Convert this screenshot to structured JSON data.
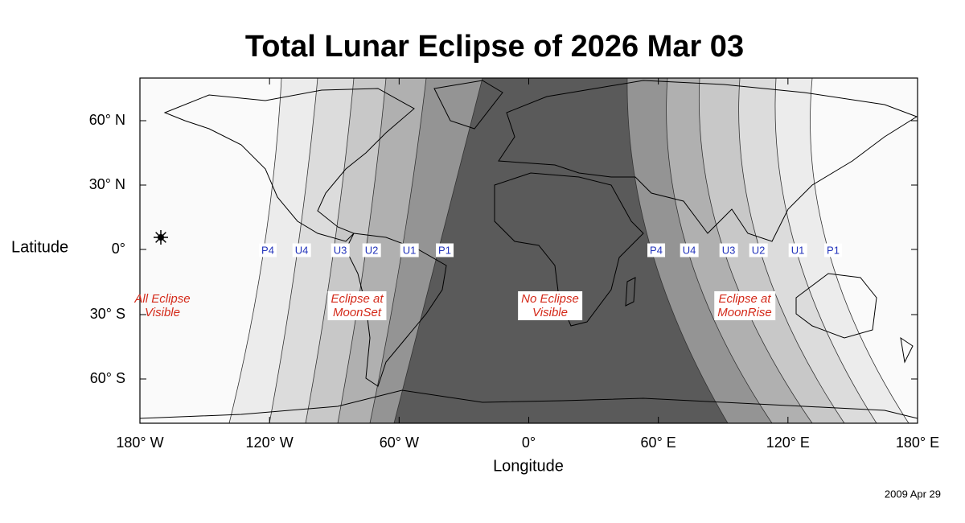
{
  "title": "Total Lunar Eclipse of  2026 Mar 03",
  "y_axis": {
    "label": "Latitude",
    "ticks": [
      "60° N",
      "30° N",
      "0°",
      "30° S",
      "60° S"
    ]
  },
  "x_axis": {
    "label": "Longitude",
    "ticks": [
      "180° W",
      "120° W",
      "60° W",
      "0°",
      "60° E",
      "120° E",
      "180° E"
    ]
  },
  "contacts_west": [
    "P4",
    "U4",
    "U3",
    "U2",
    "U1",
    "P1"
  ],
  "contacts_east": [
    "P4",
    "U4",
    "U3",
    "U2",
    "U1",
    "P1"
  ],
  "regions": [
    {
      "lines": [
        "All Eclipse",
        "Visible"
      ]
    },
    {
      "lines": [
        "Eclipse at",
        "MoonSet"
      ]
    },
    {
      "lines": [
        "No Eclipse",
        "Visible"
      ]
    },
    {
      "lines": [
        "Eclipse at",
        "MoonRise"
      ]
    }
  ],
  "date": "2009 Apr 29"
}
